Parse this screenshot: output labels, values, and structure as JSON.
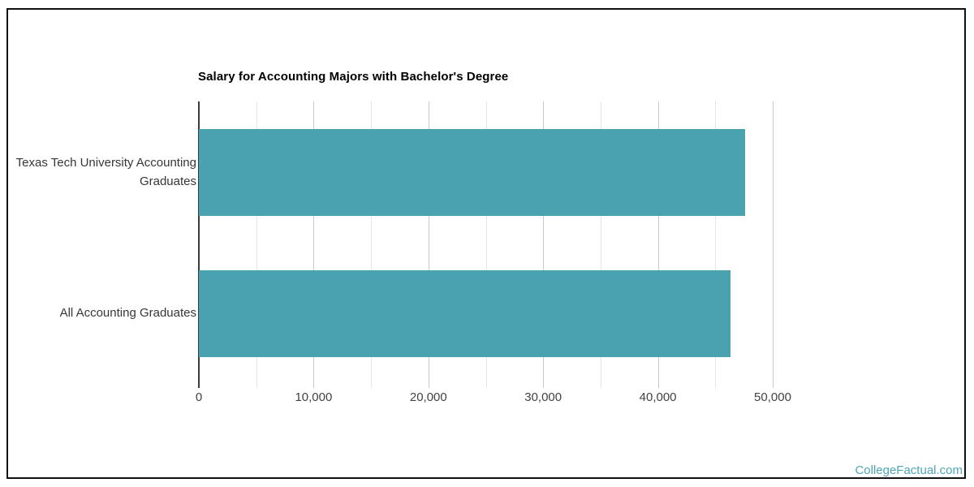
{
  "frame": {
    "border_color": "#111111",
    "background": "#ffffff"
  },
  "chart_data": {
    "type": "bar",
    "orientation": "horizontal",
    "title": "Salary for Accounting Majors with Bachelor's Degree",
    "categories": [
      "Texas Tech University Accounting Graduates",
      "All Accounting Graduates"
    ],
    "values": [
      47600,
      46300
    ],
    "xlabel": "",
    "ylabel": "",
    "xlim": [
      0,
      55000
    ],
    "xtick_values": [
      0,
      10000,
      20000,
      30000,
      40000,
      50000
    ],
    "xtick_labels": [
      "0",
      "10,000",
      "20,000",
      "30,000",
      "40,000",
      "50,000"
    ],
    "minor_grid_step": 5000,
    "major_grid_step": 10000,
    "grid": "vertical",
    "legend": "none",
    "bar_color": "#4AA2B0",
    "axis_line_color": "#3a3a3a"
  },
  "watermark": {
    "label": "CollegeFactual.com",
    "color": "#4FA6B4"
  }
}
